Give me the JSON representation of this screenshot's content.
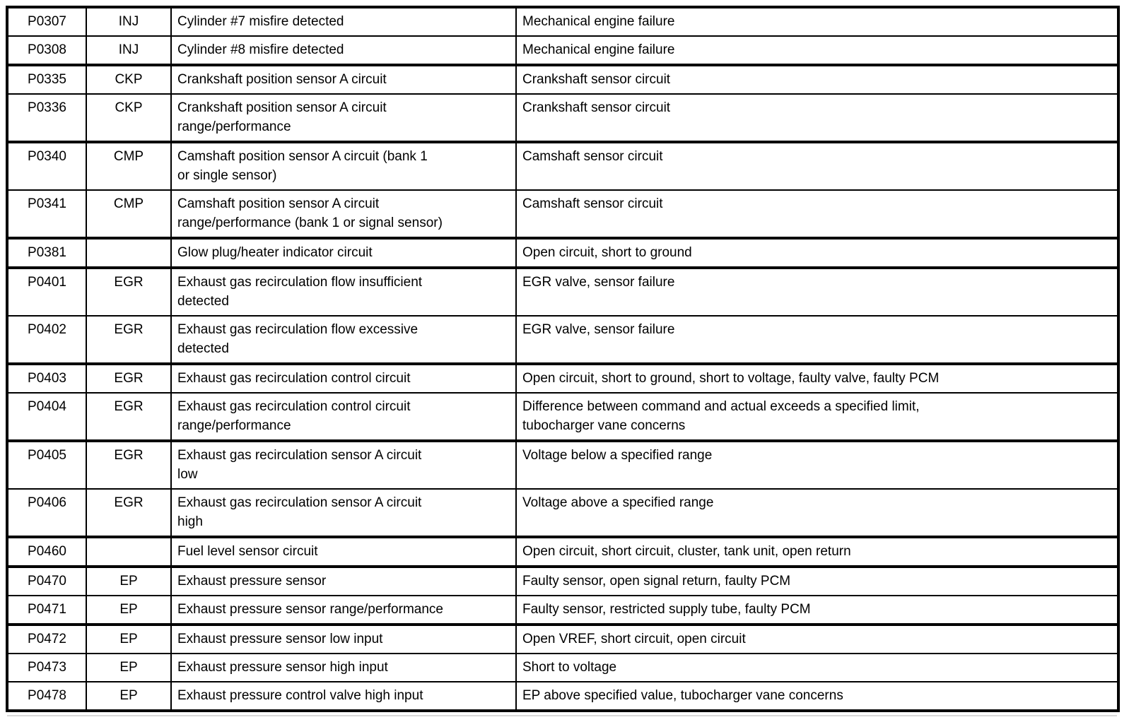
{
  "document": {
    "kind": "diagnostic-trouble-code-table",
    "columns": [
      "code",
      "abbreviation",
      "description",
      "causes"
    ]
  },
  "colors": {
    "background": "#ffffff",
    "text": "#000000",
    "border": "#000000",
    "artifact_line": "#d8d8d8"
  },
  "table": {
    "rows": [
      {
        "code": "P0307",
        "abbr": "INJ",
        "description": "Cylinder #7 misfire detected",
        "causes": "Mechanical engine failure",
        "lines": 1,
        "group_end": false
      },
      {
        "code": "P0308",
        "abbr": "INJ",
        "description": "Cylinder #8 misfire detected",
        "causes": "Mechanical engine failure",
        "lines": 1,
        "group_end": true
      },
      {
        "code": "P0335",
        "abbr": "CKP",
        "description": "Crankshaft position sensor A circuit",
        "causes": "Crankshaft sensor circuit",
        "lines": 1,
        "group_end": false
      },
      {
        "code": "P0336",
        "abbr": "CKP",
        "description": "Crankshaft position sensor A circuit\nrange/performance",
        "causes": "Crankshaft sensor circuit",
        "lines": 2,
        "group_end": true
      },
      {
        "code": "P0340",
        "abbr": "CMP",
        "description": "Camshaft position sensor A circuit (bank 1\nor single sensor)",
        "causes": "Camshaft sensor circuit",
        "lines": 2,
        "group_end": false
      },
      {
        "code": "P0341",
        "abbr": "CMP",
        "description": "Camshaft position sensor A circuit\nrange/performance (bank 1 or signal sensor)",
        "causes": "Camshaft sensor circuit",
        "lines": 2,
        "group_end": true
      },
      {
        "code": "P0381",
        "abbr": "",
        "description": "Glow plug/heater indicator circuit",
        "causes": "Open circuit, short to ground",
        "lines": 1,
        "group_end": true
      },
      {
        "code": "P0401",
        "abbr": "EGR",
        "description": "Exhaust gas recirculation flow insufficient\ndetected",
        "causes": "EGR valve, sensor failure",
        "lines": 2,
        "group_end": false
      },
      {
        "code": "P0402",
        "abbr": "EGR",
        "description": "Exhaust gas recirculation flow excessive\ndetected",
        "causes": "EGR valve, sensor failure",
        "lines": 2,
        "group_end": true
      },
      {
        "code": "P0403",
        "abbr": "EGR",
        "description": "Exhaust gas recirculation control circuit",
        "causes": "Open circuit, short to ground, short to voltage, faulty valve, faulty PCM",
        "lines": 1,
        "group_end": false
      },
      {
        "code": "P0404",
        "abbr": "EGR",
        "description": "Exhaust gas recirculation control circuit\nrange/performance",
        "causes": "Difference between command and actual exceeds a specified limit,\ntubocharger vane concerns",
        "lines": 2,
        "group_end": true
      },
      {
        "code": "P0405",
        "abbr": "EGR",
        "description": "Exhaust gas recirculation sensor A circuit\nlow",
        "causes": "Voltage below a specified range",
        "lines": 2,
        "group_end": false
      },
      {
        "code": "P0406",
        "abbr": "EGR",
        "description": "Exhaust gas recirculation sensor A circuit\nhigh",
        "causes": "Voltage above a specified range",
        "lines": 2,
        "group_end": true
      },
      {
        "code": "P0460",
        "abbr": "",
        "description": "Fuel level sensor circuit",
        "causes": "Open circuit, short circuit, cluster, tank unit, open return",
        "lines": 1,
        "group_end": true
      },
      {
        "code": "P0470",
        "abbr": "EP",
        "description": "Exhaust pressure sensor",
        "causes": "Faulty sensor, open signal return, faulty PCM",
        "lines": 1,
        "group_end": false
      },
      {
        "code": "P0471",
        "abbr": "EP",
        "description": "Exhaust pressure sensor range/performance",
        "causes": "Faulty sensor, restricted supply tube, faulty PCM",
        "lines": 1,
        "group_end": true
      },
      {
        "code": "P0472",
        "abbr": "EP",
        "description": "Exhaust pressure sensor low input",
        "causes": "Open VREF, short circuit, open circuit",
        "lines": 1,
        "group_end": false
      },
      {
        "code": "P0473",
        "abbr": "EP",
        "description": "Exhaust pressure sensor high input",
        "causes": "Short to voltage",
        "lines": 1,
        "group_end": false
      },
      {
        "code": "P0478",
        "abbr": "EP",
        "description": "Exhaust pressure control valve high input",
        "causes": "EP above specified value, tubocharger vane concerns",
        "lines": 1,
        "group_end": true
      }
    ]
  }
}
